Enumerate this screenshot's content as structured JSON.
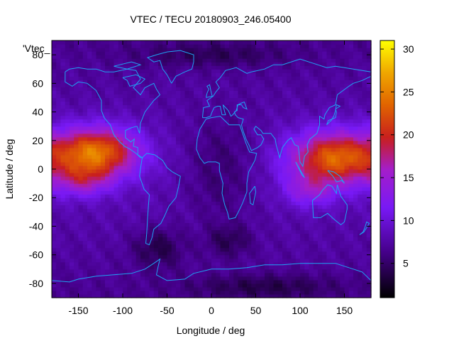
{
  "chart_data": {
    "type": "heatmap",
    "title": "VTEC / TECU 20180903_246.05400",
    "xlabel": "Longitude / deg",
    "ylabel": "Latitude / deg",
    "xlim": [
      -180,
      180
    ],
    "ylim": [
      -90,
      90
    ],
    "x_ticks": [
      -150,
      -100,
      -50,
      0,
      50,
      100,
      150
    ],
    "y_ticks": [
      -80,
      -60,
      -40,
      -20,
      0,
      20,
      40,
      60,
      80
    ],
    "colorbar": {
      "range": [
        1,
        31
      ],
      "ticks": [
        5,
        10,
        15,
        20,
        25,
        30
      ]
    },
    "legend_label": "'Vtec_",
    "grid": false,
    "grid_step_deg": {
      "lon": 5,
      "lat": 2.5
    },
    "anomalies": [
      {
        "lon": -130,
        "lat": 12,
        "slon": 32,
        "slat": 12,
        "amp": 16
      },
      {
        "lon": -145,
        "lat": -8,
        "slon": 22,
        "slat": 8,
        "amp": 6
      },
      {
        "lon": 140,
        "lat": 8,
        "slon": 35,
        "slat": 13,
        "amp": 15
      },
      {
        "lon": 110,
        "lat": -15,
        "slon": 20,
        "slat": 8,
        "amp": 5
      },
      {
        "lon": 10,
        "lat": 0,
        "slon": 30,
        "slat": 25,
        "amp": -3
      },
      {
        "lon": -60,
        "lat": -55,
        "slon": 20,
        "slat": 10,
        "amp": -3.5
      },
      {
        "lon": 20,
        "lat": -50,
        "slon": 18,
        "slat": 8,
        "amp": -3
      },
      {
        "lon": 0,
        "lat": 80,
        "slon": 60,
        "slat": 6,
        "amp": -2.5
      },
      {
        "lon": 60,
        "lat": -82,
        "slon": 60,
        "slat": 6,
        "amp": -3
      }
    ],
    "coastlines": [
      [
        [
          -165,
          68
        ],
        [
          -160,
          70
        ],
        [
          -150,
          71
        ],
        [
          -140,
          70
        ],
        [
          -130,
          70
        ],
        [
          -120,
          68
        ],
        [
          -110,
          68
        ],
        [
          -95,
          70
        ],
        [
          -85,
          69
        ],
        [
          -80,
          63
        ],
        [
          -88,
          57
        ],
        [
          -80,
          52
        ],
        [
          -75,
          57
        ],
        [
          -65,
          60
        ],
        [
          -62,
          56
        ],
        [
          -58,
          52
        ],
        [
          -65,
          48
        ],
        [
          -70,
          44
        ],
        [
          -75,
          40
        ],
        [
          -80,
          32
        ],
        [
          -81,
          25
        ],
        [
          -84,
          30
        ],
        [
          -90,
          29
        ],
        [
          -97,
          27
        ],
        [
          -97,
          22
        ],
        [
          -91,
          19
        ],
        [
          -87,
          21
        ],
        [
          -88,
          16
        ],
        [
          -83,
          15
        ],
        [
          -83,
          10
        ],
        [
          -78,
          8
        ],
        [
          -80,
          8
        ],
        [
          -85,
          11
        ],
        [
          -92,
          14
        ],
        [
          -98,
          16
        ],
        [
          -105,
          20
        ],
        [
          -110,
          24
        ],
        [
          -114,
          31
        ],
        [
          -117,
          33
        ],
        [
          -121,
          36
        ],
        [
          -124,
          41
        ],
        [
          -124,
          48
        ],
        [
          -130,
          55
        ],
        [
          -140,
          60
        ],
        [
          -150,
          61
        ],
        [
          -157,
          58
        ],
        [
          -165,
          61
        ],
        [
          -165,
          68
        ]
      ],
      [
        [
          -78,
          8
        ],
        [
          -73,
          11
        ],
        [
          -64,
          10
        ],
        [
          -55,
          6
        ],
        [
          -50,
          1
        ],
        [
          -44,
          -2
        ],
        [
          -35,
          -5
        ],
        [
          -37,
          -12
        ],
        [
          -40,
          -20
        ],
        [
          -48,
          -26
        ],
        [
          -53,
          -33
        ],
        [
          -57,
          -38
        ],
        [
          -65,
          -42
        ],
        [
          -67,
          -48
        ],
        [
          -70,
          -53
        ],
        [
          -74,
          -52
        ],
        [
          -73,
          -45
        ],
        [
          -72,
          -35
        ],
        [
          -71,
          -25
        ],
        [
          -70,
          -18
        ],
        [
          -76,
          -14
        ],
        [
          -81,
          -5
        ],
        [
          -80,
          0
        ],
        [
          -78,
          8
        ]
      ],
      [
        [
          -17,
          14
        ],
        [
          -16,
          21
        ],
        [
          -13,
          28
        ],
        [
          -6,
          35
        ],
        [
          0,
          36
        ],
        [
          10,
          37
        ],
        [
          20,
          31
        ],
        [
          32,
          31
        ],
        [
          34,
          27
        ],
        [
          39,
          18
        ],
        [
          43,
          12
        ],
        [
          51,
          11
        ],
        [
          49,
          6
        ],
        [
          42,
          -2
        ],
        [
          40,
          -10
        ],
        [
          40,
          -16
        ],
        [
          35,
          -24
        ],
        [
          32,
          -28
        ],
        [
          27,
          -34
        ],
        [
          20,
          -35
        ],
        [
          18,
          -30
        ],
        [
          15,
          -25
        ],
        [
          12,
          -17
        ],
        [
          13,
          -10
        ],
        [
          9,
          -1
        ],
        [
          9,
          4
        ],
        [
          5,
          5
        ],
        [
          -4,
          5
        ],
        [
          -8,
          4
        ],
        [
          -13,
          8
        ],
        [
          -17,
          14
        ]
      ],
      [
        [
          -10,
          36
        ],
        [
          -9,
          43
        ],
        [
          -2,
          44
        ],
        [
          -5,
          48
        ],
        [
          2,
          51
        ],
        [
          5,
          54
        ],
        [
          9,
          57
        ],
        [
          5,
          61
        ],
        [
          10,
          64
        ],
        [
          16,
          69
        ],
        [
          28,
          71
        ],
        [
          40,
          67
        ],
        [
          45,
          68
        ],
        [
          60,
          70
        ],
        [
          70,
          73
        ],
        [
          80,
          73
        ],
        [
          100,
          77
        ],
        [
          115,
          74
        ],
        [
          130,
          71
        ],
        [
          140,
          72
        ],
        [
          160,
          70
        ],
        [
          170,
          69
        ],
        [
          180,
          68
        ],
        [
          180,
          65
        ],
        [
          170,
          62
        ],
        [
          160,
          60
        ],
        [
          155,
          58
        ],
        [
          142,
          52
        ],
        [
          140,
          45
        ],
        [
          133,
          43
        ],
        [
          128,
          38
        ],
        [
          127,
          35
        ],
        [
          122,
          37
        ],
        [
          122,
          31
        ],
        [
          119,
          25
        ],
        [
          111,
          21
        ],
        [
          108,
          17
        ],
        [
          109,
          12
        ],
        [
          105,
          9
        ],
        [
          103,
          2
        ],
        [
          100,
          5
        ],
        [
          98,
          16
        ],
        [
          94,
          17
        ],
        [
          90,
          22
        ],
        [
          86,
          20
        ],
        [
          80,
          15
        ],
        [
          77,
          8
        ],
        [
          73,
          17
        ],
        [
          72,
          21
        ],
        [
          67,
          25
        ],
        [
          58,
          25
        ],
        [
          56,
          27
        ],
        [
          50,
          30
        ],
        [
          48,
          28
        ],
        [
          52,
          24
        ],
        [
          56,
          24
        ],
        [
          59,
          21
        ],
        [
          56,
          17
        ],
        [
          52,
          15
        ],
        [
          45,
          13
        ],
        [
          43,
          16
        ],
        [
          39,
          21
        ],
        [
          35,
          28
        ],
        [
          34,
          31
        ],
        [
          36,
          35
        ],
        [
          30,
          36
        ],
        [
          27,
          38
        ],
        [
          26,
          40
        ],
        [
          29,
          41
        ],
        [
          29,
          45
        ],
        [
          34,
          45
        ],
        [
          36,
          43
        ],
        [
          40,
          42
        ],
        [
          37,
          47
        ],
        [
          33,
          46
        ],
        [
          30,
          45
        ],
        [
          28,
          41
        ],
        [
          24,
          38
        ],
        [
          22,
          37
        ],
        [
          19,
          41
        ],
        [
          16,
          43
        ],
        [
          13,
          45
        ],
        [
          15,
          40
        ],
        [
          16,
          38
        ],
        [
          12,
          38
        ],
        [
          10,
          44
        ],
        [
          7,
          44
        ],
        [
          3,
          43
        ],
        [
          0,
          39
        ],
        [
          -1,
          37
        ],
        [
          -6,
          36
        ],
        [
          -10,
          36
        ]
      ],
      [
        [
          114,
          -22
        ],
        [
          115,
          -34
        ],
        [
          123,
          -34
        ],
        [
          131,
          -31
        ],
        [
          138,
          -35
        ],
        [
          146,
          -39
        ],
        [
          150,
          -37
        ],
        [
          153,
          -28
        ],
        [
          153,
          -25
        ],
        [
          146,
          -19
        ],
        [
          142,
          -11
        ],
        [
          141,
          -17
        ],
        [
          136,
          -12
        ],
        [
          131,
          -11
        ],
        [
          125,
          -15
        ],
        [
          122,
          -18
        ],
        [
          114,
          -22
        ]
      ],
      [
        [
          -180,
          -78
        ],
        [
          -160,
          -79
        ],
        [
          -150,
          -77
        ],
        [
          -130,
          -75
        ],
        [
          -110,
          -74
        ],
        [
          -90,
          -73
        ],
        [
          -75,
          -70
        ],
        [
          -65,
          -66
        ],
        [
          -58,
          -63
        ],
        [
          -60,
          -68
        ],
        [
          -62,
          -74
        ],
        [
          -50,
          -78
        ],
        [
          -30,
          -77
        ],
        [
          -20,
          -73
        ],
        [
          0,
          -70
        ],
        [
          20,
          -70
        ],
        [
          40,
          -69
        ],
        [
          60,
          -67
        ],
        [
          80,
          -67
        ],
        [
          100,
          -66
        ],
        [
          120,
          -66
        ],
        [
          140,
          -66
        ],
        [
          160,
          -70
        ],
        [
          170,
          -72
        ],
        [
          180,
          -78
        ]
      ],
      [
        [
          -45,
          60
        ],
        [
          -40,
          65
        ],
        [
          -30,
          68
        ],
        [
          -22,
          70
        ],
        [
          -20,
          75
        ],
        [
          -20,
          80
        ],
        [
          -35,
          83
        ],
        [
          -50,
          82
        ],
        [
          -62,
          80
        ],
        [
          -72,
          78
        ],
        [
          -65,
          75
        ],
        [
          -58,
          76
        ],
        [
          -55,
          70
        ],
        [
          -50,
          66
        ],
        [
          -45,
          60
        ]
      ],
      [
        [
          -6,
          50
        ],
        [
          -5,
          53
        ],
        [
          -3,
          56
        ],
        [
          -5,
          58
        ],
        [
          -2,
          59
        ],
        [
          0,
          53
        ],
        [
          1,
          51
        ],
        [
          -6,
          50
        ]
      ],
      [
        [
          49,
          -12
        ],
        [
          50,
          -16
        ],
        [
          47,
          -25
        ],
        [
          44,
          -24
        ],
        [
          43,
          -17
        ],
        [
          49,
          -12
        ]
      ],
      [
        [
          130,
          31
        ],
        [
          132,
          34
        ],
        [
          136,
          35
        ],
        [
          140,
          36
        ],
        [
          141,
          40
        ],
        [
          140,
          42
        ],
        [
          145,
          44
        ],
        [
          141,
          45
        ],
        [
          140,
          41
        ],
        [
          138,
          37
        ],
        [
          135,
          34
        ],
        [
          130,
          31
        ]
      ],
      [
        [
          95,
          5
        ],
        [
          105,
          -6
        ],
        [
          102,
          -4
        ],
        [
          95,
          5
        ]
      ],
      [
        [
          131,
          -1
        ],
        [
          138,
          -2
        ],
        [
          145,
          -5
        ],
        [
          150,
          -10
        ],
        [
          147,
          -8
        ],
        [
          141,
          -9
        ],
        [
          137,
          -5
        ],
        [
          131,
          -1
        ]
      ],
      [
        [
          173,
          -41
        ],
        [
          175,
          -37
        ],
        [
          178,
          -38
        ],
        [
          175,
          -41
        ],
        [
          172,
          -44
        ],
        [
          167,
          -46
        ],
        [
          171,
          -44
        ],
        [
          173,
          -41
        ]
      ],
      [
        [
          -100,
          64
        ],
        [
          -85,
          66
        ],
        [
          -75,
          63
        ],
        [
          -80,
          60
        ],
        [
          -92,
          58
        ],
        [
          -95,
          62
        ],
        [
          -100,
          64
        ]
      ],
      [
        [
          -110,
          72
        ],
        [
          -90,
          75
        ],
        [
          -80,
          73
        ],
        [
          -95,
          70
        ],
        [
          -110,
          72
        ]
      ]
    ]
  }
}
